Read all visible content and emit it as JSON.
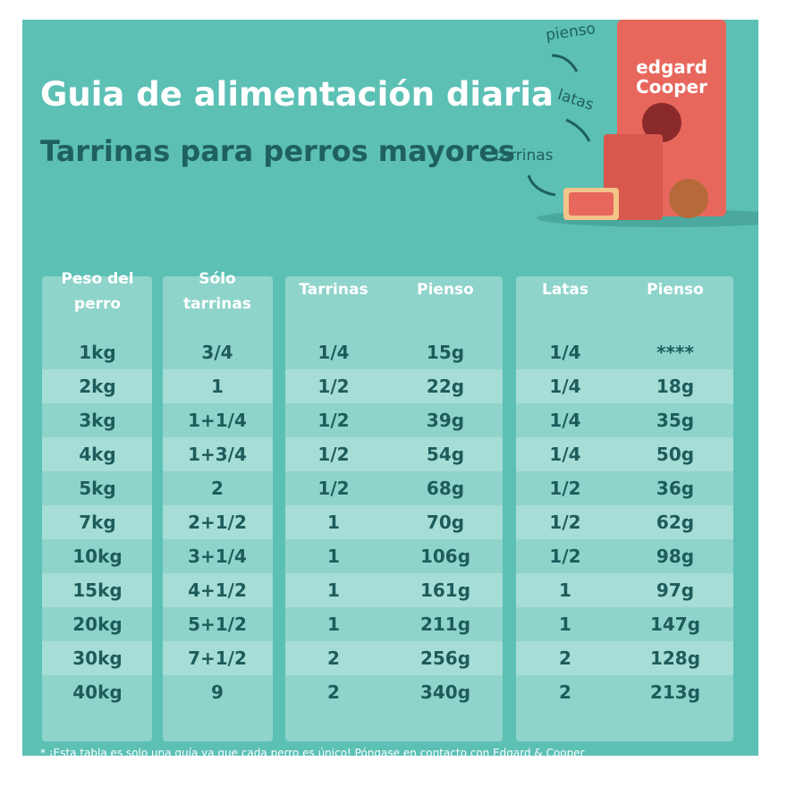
{
  "header": {
    "title": "Guia de alimentación diaria",
    "subtitle": "Tarrinas para perros mayores"
  },
  "product_labels": {
    "bag": "pienso",
    "can": "latas",
    "tub": "tarrinas"
  },
  "table": {
    "headers": [
      "Peso del perro",
      "Sólo tarrinas",
      "Tarrinas",
      "Pienso",
      "Latas",
      "Pienso"
    ],
    "rows": [
      [
        "1kg",
        "3/4",
        "1/4",
        "15g",
        "1/4",
        "****"
      ],
      [
        "2kg",
        "1",
        "1/2",
        "22g",
        "1/4",
        "18g"
      ],
      [
        "3kg",
        "1+1/4",
        "1/2",
        "39g",
        "1/4",
        "35g"
      ],
      [
        "4kg",
        "1+3/4",
        "1/2",
        "54g",
        "1/4",
        "50g"
      ],
      [
        "5kg",
        "2",
        "1/2",
        "68g",
        "1/2",
        "36g"
      ],
      [
        "7kg",
        "2+1/2",
        "1",
        "70g",
        "1/2",
        "62g"
      ],
      [
        "10kg",
        "3+1/4",
        "1",
        "106g",
        "1/2",
        "98g"
      ],
      [
        "15kg",
        "4+1/2",
        "1",
        "161g",
        "1",
        "97g"
      ],
      [
        "20kg",
        "5+1/2",
        "1",
        "211g",
        "1",
        "147g"
      ],
      [
        "30kg",
        "7+1/2",
        "2",
        "256g",
        "2",
        "128g"
      ],
      [
        "40kg",
        "9",
        "2",
        "340g",
        "2",
        "213g"
      ]
    ]
  },
  "footnote": "* ¡Esta tabla es solo una guía ya que cada perro es único! Póngase en contacto con Edgard & Cooper"
}
